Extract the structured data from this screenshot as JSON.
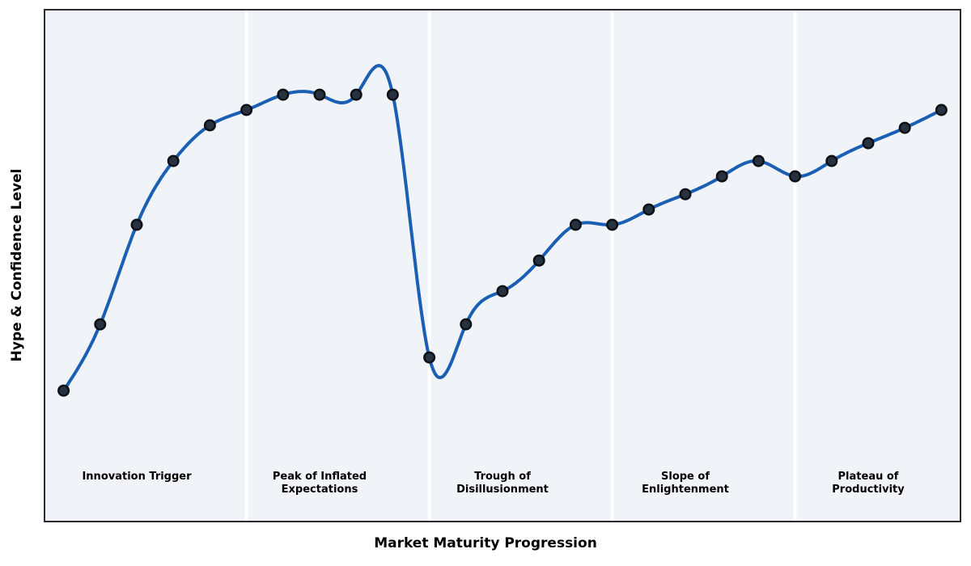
{
  "chart_data": {
    "type": "line",
    "title": "",
    "xlabel": "Market Maturity Progression",
    "ylabel": "Hype & Confidence Level",
    "x": [
      0,
      1,
      2,
      3,
      4,
      5,
      6,
      7,
      8,
      9,
      10,
      11,
      12,
      13,
      14,
      15,
      16,
      17,
      18,
      19,
      20,
      21,
      22,
      23,
      24
    ],
    "y": [
      25.5,
      38.5,
      58,
      70.5,
      77.5,
      80.5,
      83.5,
      83.5,
      83.5,
      83.5,
      32,
      38.5,
      45,
      51,
      58,
      58,
      61,
      64,
      67.5,
      70.5,
      67.5,
      70.5,
      74,
      77,
      80.5
    ],
    "xlim": [
      -0.5,
      24.5
    ],
    "ylim": [
      0,
      100
    ],
    "grid": false,
    "axis_ticks": "none",
    "smoothing": "cubic-spline",
    "marker": "circle",
    "phases": [
      {
        "label": "Innovation Trigger",
        "start": -0.5,
        "end": 5,
        "label_x": 2
      },
      {
        "label": "Peak of Inflated\nExpectations",
        "start": 5,
        "end": 10,
        "label_x": 7
      },
      {
        "label": "Trough of\nDisillusionment",
        "start": 10,
        "end": 15,
        "label_x": 12
      },
      {
        "label": "Slope of\nEnlightenment",
        "start": 15,
        "end": 20,
        "label_x": 17
      },
      {
        "label": "Plateau of\nProductivity",
        "start": 20,
        "end": 24.5,
        "label_x": 22
      }
    ],
    "colors": {
      "line": "#1a5fb4",
      "marker_fill": "#263240",
      "marker_edge": "#0b0f14",
      "plot_bg": "#f0f4f8",
      "phase_divider": "#ffffff",
      "frame": "#2b2b30",
      "label_text": "#000000",
      "figure_bg": "#ffffff"
    }
  }
}
